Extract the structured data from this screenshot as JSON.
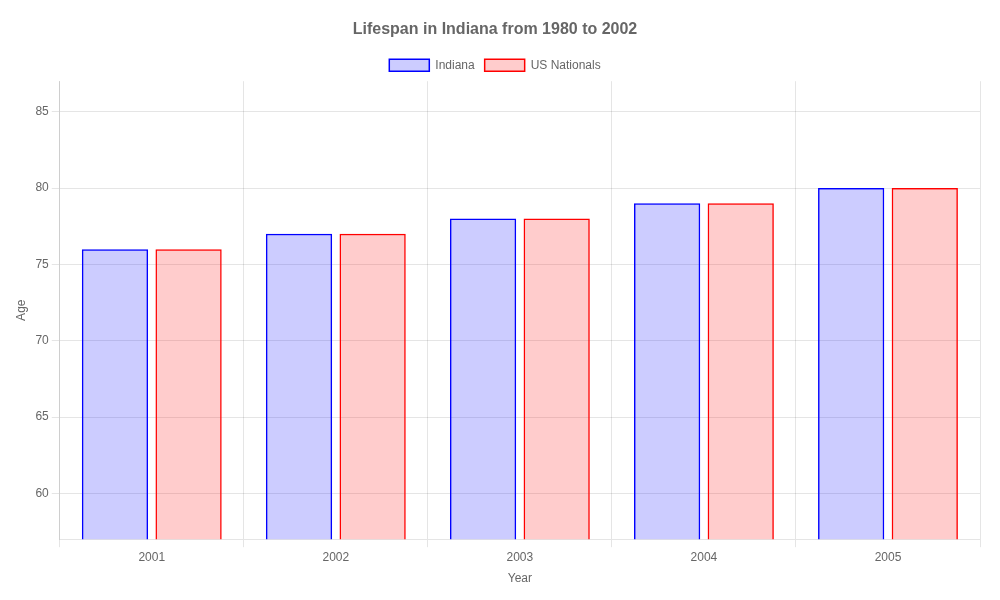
{
  "chart_data": {
    "type": "bar",
    "title": "Lifespan in Indiana from 1980 to 2002",
    "x_label": "Year",
    "y_label": "Age",
    "categories": [
      "2001",
      "2002",
      "2003",
      "2004",
      "2005"
    ],
    "series": [
      {
        "name": "Indiana",
        "color": "#0000ff",
        "values": [
          76,
          77,
          78,
          79,
          80
        ]
      },
      {
        "name": "US Nationals",
        "color": "#ff0000",
        "values": [
          76,
          77,
          78,
          79,
          80
        ]
      }
    ],
    "ylim": [
      57,
      87
    ],
    "yticks": [
      60,
      65,
      70,
      75,
      80,
      85
    ],
    "grid": true,
    "legend": "top"
  }
}
